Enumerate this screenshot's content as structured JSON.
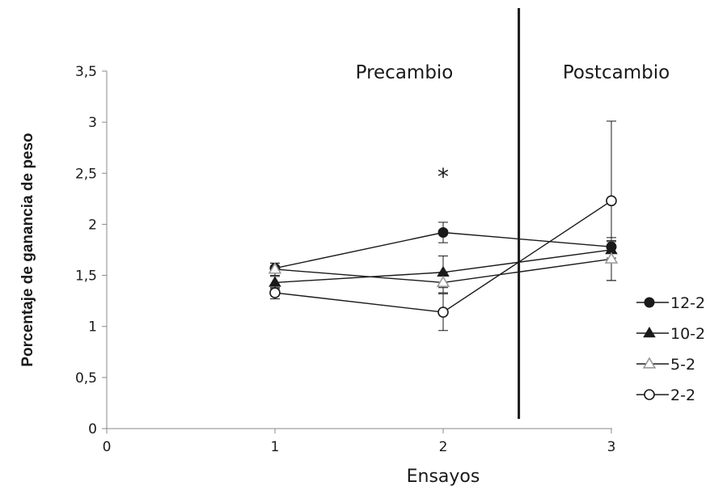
{
  "chart_data": {
    "type": "line",
    "title": "",
    "xlabel": "Ensayos",
    "ylabel": "Porcentaje de ganancia de peso",
    "xlim": [
      0,
      3
    ],
    "ylim": [
      0,
      3.5
    ],
    "x_ticks": [
      "0",
      "1",
      "2",
      "3"
    ],
    "y_ticks": [
      "0",
      "0,5",
      "1",
      "1,5",
      "2",
      "2,5",
      "3",
      "3,5"
    ],
    "grid": false,
    "legend_position": "right",
    "regions": [
      {
        "label": "Precambio"
      },
      {
        "label": "Postcambio"
      }
    ],
    "divider_x": 2.45,
    "annotations": [
      {
        "text": "*",
        "x": 2,
        "y": 2.47
      }
    ],
    "series": [
      {
        "name": "12-2",
        "marker": "circle-filled",
        "color": "#1a1a1a",
        "x": [
          1,
          2,
          3
        ],
        "y": [
          1.57,
          1.92,
          1.78
        ],
        "error": [
          [
            1.52,
            1.62
          ],
          [
            1.82,
            2.02
          ],
          [
            1.72,
            1.84
          ]
        ]
      },
      {
        "name": "10-2",
        "marker": "triangle-filled",
        "color": "#1a1a1a",
        "x": [
          1,
          2,
          3
        ],
        "y": [
          1.43,
          1.53,
          1.75
        ],
        "error": [
          [
            1.37,
            1.49
          ],
          [
            1.38,
            1.69
          ],
          [
            1.67,
            1.83
          ]
        ]
      },
      {
        "name": "5-2",
        "marker": "triangle-open",
        "color": "#999999",
        "x": [
          1,
          2,
          3
        ],
        "y": [
          1.56,
          1.43,
          1.66
        ],
        "error": [
          [
            1.5,
            1.62
          ],
          [
            1.33,
            1.53
          ],
          [
            1.45,
            1.87
          ]
        ]
      },
      {
        "name": "2-2",
        "marker": "circle-open",
        "color": "#1a1a1a",
        "x": [
          1,
          2,
          3
        ],
        "y": [
          1.33,
          1.14,
          2.23
        ],
        "error": [
          [
            1.27,
            1.38
          ],
          [
            0.96,
            1.32
          ],
          [
            1.45,
            3.01
          ]
        ]
      }
    ]
  }
}
